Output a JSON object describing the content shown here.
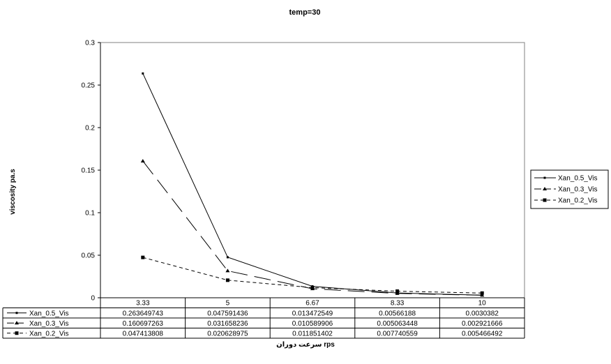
{
  "chart_data": {
    "type": "line",
    "title": "temp=30",
    "xlabel": "سرعت دوران rps",
    "ylabel": "viscosity pa.s",
    "categories": [
      "3.33",
      "5",
      "6.67",
      "8.33",
      "10"
    ],
    "ylim": [
      0,
      0.3
    ],
    "yticks": [
      0,
      0.05,
      0.1,
      0.15,
      0.2,
      0.25,
      0.3
    ],
    "ytick_labels": [
      "0",
      "0.05",
      "0.1",
      "0.15",
      "0.2",
      "0.25",
      "0.3"
    ],
    "grid": false,
    "legend_position": "right",
    "data_table": true,
    "series": [
      {
        "name": "Xan_0.5_Vis",
        "values": [
          0.263649743,
          0.047591436,
          0.013472549,
          0.00566188,
          0.0030382
        ],
        "labels": [
          "0.263649743",
          "0.047591436",
          "0.013472549",
          "0.00566188",
          "0.0030382"
        ],
        "line_style": "solid",
        "marker": "small-square",
        "color": "#000000"
      },
      {
        "name": "Xan_0.3_Vis",
        "values": [
          0.160697263,
          0.031658236,
          0.010589906,
          0.005063448,
          0.002921666
        ],
        "labels": [
          "0.160697263",
          "0.031658236",
          "0.010589906",
          "0.005063448",
          "0.002921666"
        ],
        "line_style": "long-dash",
        "marker": "triangle",
        "color": "#000000"
      },
      {
        "name": "Xan_0.2_Vis",
        "values": [
          0.047413808,
          0.020628975,
          0.011851402,
          0.007740559,
          0.005466492
        ],
        "labels": [
          "0.047413808",
          "0.020628975",
          "0.011851402",
          "0.007740559",
          "0.005466492"
        ],
        "line_style": "short-dash",
        "marker": "square",
        "color": "#000000"
      }
    ]
  }
}
